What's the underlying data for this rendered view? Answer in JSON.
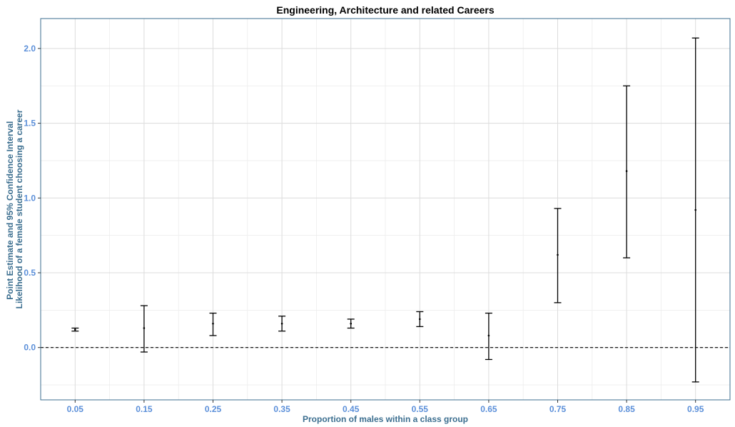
{
  "chart_data": {
    "type": "errorbar",
    "title": "Engineering, Architecture and related Careers",
    "xlabel": "Proportion of males within a class group",
    "ylabel_lines": [
      "Point Estimate and 95% Confidence Interval",
      "Likelihood of a female student choosing a career"
    ],
    "x_ticks": [
      "0.05",
      "0.15",
      "0.25",
      "0.35",
      "0.45",
      "0.55",
      "0.65",
      "0.75",
      "0.85",
      "0.95"
    ],
    "y_ticks": [
      "0.0",
      "0.5",
      "1.0",
      "1.5",
      "2.0"
    ],
    "xlim": [
      0.0,
      1.0
    ],
    "ylim": [
      -0.35,
      2.2
    ],
    "reference_line": {
      "y": 0.0,
      "style": "dashed"
    },
    "grid": true,
    "points": [
      {
        "x": 0.05,
        "estimate": 0.12,
        "lower": 0.11,
        "upper": 0.13
      },
      {
        "x": 0.15,
        "estimate": 0.13,
        "lower": -0.03,
        "upper": 0.28
      },
      {
        "x": 0.25,
        "estimate": 0.16,
        "lower": 0.08,
        "upper": 0.23
      },
      {
        "x": 0.35,
        "estimate": 0.16,
        "lower": 0.11,
        "upper": 0.21
      },
      {
        "x": 0.45,
        "estimate": 0.16,
        "lower": 0.13,
        "upper": 0.19
      },
      {
        "x": 0.55,
        "estimate": 0.19,
        "lower": 0.14,
        "upper": 0.24
      },
      {
        "x": 0.65,
        "estimate": 0.08,
        "lower": -0.08,
        "upper": 0.23
      },
      {
        "x": 0.75,
        "estimate": 0.62,
        "lower": 0.3,
        "upper": 0.93
      },
      {
        "x": 0.85,
        "estimate": 1.18,
        "lower": 0.6,
        "upper": 1.75
      },
      {
        "x": 0.95,
        "estimate": 0.92,
        "lower": -0.23,
        "upper": 2.07
      }
    ]
  },
  "colors": {
    "tick_label": "#5b8fd9",
    "axis_title": "#3b6e8f",
    "panel_border": "#3b6e8f",
    "grid_major": "#dcdcdc",
    "grid_minor": "#ececec",
    "marks": "#000000"
  }
}
